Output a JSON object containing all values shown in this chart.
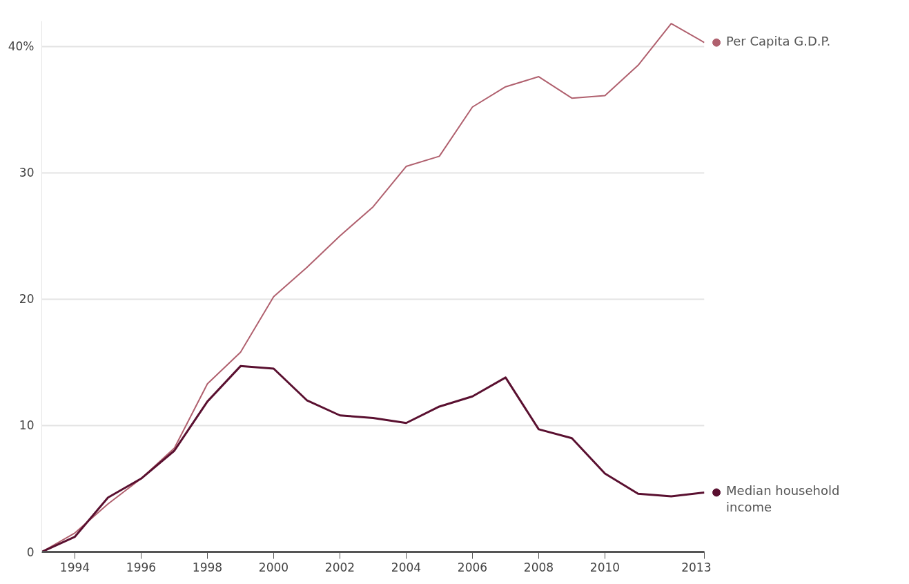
{
  "chart_data": {
    "type": "line",
    "x": [
      1993,
      1994,
      1995,
      1996,
      1997,
      1998,
      1999,
      2000,
      2001,
      2002,
      2003,
      2004,
      2005,
      2006,
      2007,
      2008,
      2009,
      2010,
      2011,
      2012,
      2013
    ],
    "series": [
      {
        "name": "Per Capita G.D.P.",
        "color": "#b0606e",
        "values": [
          0,
          1.5,
          3.8,
          5.8,
          8.2,
          13.3,
          15.8,
          20.2,
          22.5,
          25,
          27.3,
          30.5,
          31.3,
          35.2,
          36.8,
          37.6,
          35.9,
          36.1,
          38.5,
          41.8,
          40.3
        ]
      },
      {
        "name": "Median household income",
        "color": "#5a1030",
        "values": [
          0,
          1.2,
          4.3,
          5.8,
          8,
          11.9,
          14.7,
          14.5,
          12,
          10.8,
          10.6,
          10.2,
          11.5,
          12.3,
          13.8,
          9.7,
          9,
          6.2,
          4.6,
          4.4,
          4.7
        ]
      }
    ],
    "xlim": [
      1993,
      2013
    ],
    "xticks": [
      1994,
      1996,
      1998,
      2000,
      2002,
      2004,
      2006,
      2008,
      2010,
      2013
    ],
    "ylim": [
      0,
      42
    ],
    "yticks": [
      0,
      10,
      20,
      30,
      {
        "value": 40,
        "label": "40%"
      }
    ],
    "grid": "y",
    "legend": "right",
    "marker": "none",
    "line_style": "solid"
  }
}
